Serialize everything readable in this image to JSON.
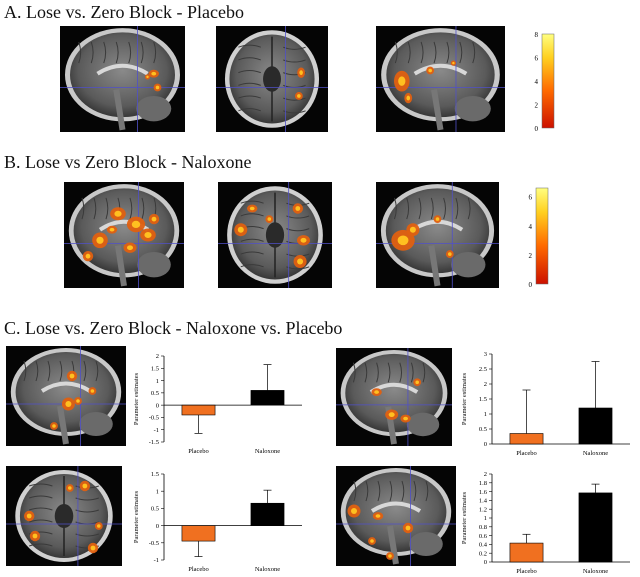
{
  "panels": {
    "a": {
      "title": "A. Lose vs. Zero Block - Placebo",
      "colorbar_ticks": [
        "0",
        "2",
        "4",
        "6",
        "8"
      ]
    },
    "b": {
      "title": "B. Lose vs Zero Block - Naloxone",
      "colorbar_ticks": [
        "0",
        "2",
        "4",
        "6"
      ]
    },
    "c": {
      "title": "C. Lose vs. Zero Block - Naloxone vs. Placebo"
    }
  },
  "colors": {
    "placebo": "#f07020",
    "naloxone": "#000000",
    "activation_low": "#cc1100",
    "activation_high": "#ffff80"
  },
  "chart_data": [
    {
      "type": "bar",
      "categories": [
        "Placebo",
        "Naloxone"
      ],
      "values": [
        -0.4,
        0.6
      ],
      "errors": [
        0.75,
        1.05
      ],
      "ylabel": "Parameter estimates",
      "ylim": [
        -1.5,
        2
      ],
      "yticks": [
        "-1.5",
        "-1",
        "-0.5",
        "0",
        "0.5",
        "1",
        "1.5",
        "2"
      ],
      "colors": [
        "#f07020",
        "#000000"
      ]
    },
    {
      "type": "bar",
      "categories": [
        "Placebo",
        "Naloxone"
      ],
      "values": [
        0.35,
        1.2
      ],
      "errors": [
        1.45,
        1.55
      ],
      "ylabel": "Parameter estimates",
      "ylim": [
        0,
        3
      ],
      "yticks": [
        "0",
        "0.5",
        "1",
        "1.5",
        "2",
        "2.5",
        "3"
      ],
      "colors": [
        "#f07020",
        "#000000"
      ]
    },
    {
      "type": "bar",
      "categories": [
        "Placebo",
        "Naloxone"
      ],
      "values": [
        -0.45,
        0.65
      ],
      "errors": [
        0.45,
        0.38
      ],
      "ylabel": "Parameter estimates",
      "ylim": [
        -1,
        1.5
      ],
      "yticks": [
        "-1",
        "-0.5",
        "0",
        "0.5",
        "1",
        "1.5"
      ],
      "colors": [
        "#f07020",
        "#000000"
      ]
    },
    {
      "type": "bar",
      "categories": [
        "Placebo",
        "Naloxone"
      ],
      "values": [
        0.43,
        1.57
      ],
      "errors": [
        0.2,
        0.2
      ],
      "ylabel": "Parameter estimates",
      "ylim": [
        0,
        2
      ],
      "yticks": [
        "0",
        "0.2",
        "0.4",
        "0.6",
        "0.8",
        "1",
        "1.2",
        "1.4",
        "1.6",
        "1.8",
        "2"
      ],
      "colors": [
        "#f07020",
        "#000000"
      ]
    }
  ]
}
